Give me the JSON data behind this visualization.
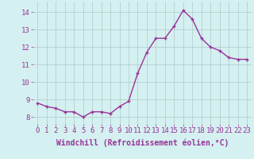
{
  "x": [
    0,
    1,
    2,
    3,
    4,
    5,
    6,
    7,
    8,
    9,
    10,
    11,
    12,
    13,
    14,
    15,
    16,
    17,
    18,
    19,
    20,
    21,
    22,
    23
  ],
  "y": [
    8.8,
    8.6,
    8.5,
    8.3,
    8.3,
    8.0,
    8.3,
    8.3,
    8.2,
    8.6,
    8.9,
    10.5,
    11.7,
    12.5,
    12.5,
    13.2,
    14.1,
    13.6,
    12.5,
    12.0,
    11.8,
    11.4,
    11.3,
    11.3
  ],
  "line_color": "#993399",
  "marker": "+",
  "marker_size": 3,
  "marker_linewidth": 1.0,
  "background_color": "#d4f0f0",
  "grid_color": "#b0c8c8",
  "xlabel": "Windchill (Refroidissement éolien,°C)",
  "xlabel_fontsize": 7,
  "xlabel_color": "#993399",
  "ylabel_ticks": [
    8,
    9,
    10,
    11,
    12,
    13,
    14
  ],
  "xtick_labels": [
    "0",
    "1",
    "2",
    "3",
    "4",
    "5",
    "6",
    "7",
    "8",
    "9",
    "10",
    "11",
    "12",
    "13",
    "14",
    "15",
    "16",
    "17",
    "18",
    "19",
    "20",
    "21",
    "22",
    "23"
  ],
  "ylim": [
    7.6,
    14.6
  ],
  "xlim": [
    -0.5,
    23.5
  ],
  "tick_fontsize": 6.5,
  "tick_color": "#993399",
  "line_width": 1.0
}
